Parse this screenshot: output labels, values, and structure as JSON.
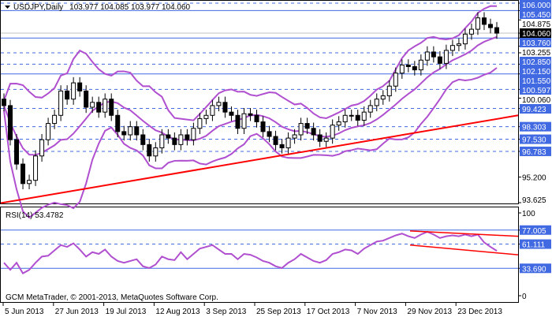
{
  "header": {
    "symbol": "USDJPY,Daily",
    "ohlc": "103.977 104.085 103.977 104.060"
  },
  "rsi_panel": {
    "label": "RSI(14) 53.4782"
  },
  "footer": {
    "copyright": "GCM MetaTrader, © 2001-2013, MetaQuotes Software Corp."
  },
  "colors": {
    "levels": "#4169e1",
    "bands": "#b050d0",
    "trendline": "#ff0000",
    "rsi": "#b050d0",
    "candles": "#000000"
  },
  "chart_data": [
    {
      "type": "candlestick",
      "title": "USDJPY,Daily",
      "ylim": [
        93.625,
        106.0
      ],
      "x_ticks": [
        "5 Jun 2013",
        "27 Jun 2013",
        "19 Jul 2013",
        "12 Aug 2013",
        "3 Sep 2013",
        "25 Sep 2013",
        "17 Oct 2013",
        "7 Nov 2013",
        "29 Nov 2013",
        "23 Dec 2013"
      ],
      "y_ticks": [
        "104.875",
        "103.255",
        "100.060",
        "95.200",
        "93.625"
      ],
      "current_price": "104.060",
      "solid_levels": [
        "105.450",
        "103.760",
        "101.550"
      ],
      "dashed_levels": [
        "106.000",
        "102.850",
        "102.150",
        "100.597",
        "99.423",
        "98.303",
        "97.530",
        "96.783"
      ],
      "closes": [
        99.6,
        97.5,
        96.0,
        94.8,
        95.0,
        96.5,
        97.5,
        98.5,
        99.0,
        100.5,
        100.0,
        101.0,
        100.5,
        99.5,
        99.8,
        99.2,
        100.0,
        99.0,
        98.0,
        97.8,
        98.3,
        97.8,
        97.2,
        96.5,
        97.0,
        97.8,
        97.6,
        97.2,
        97.8,
        97.5,
        98.2,
        98.8,
        99.0,
        99.6,
        99.8,
        99.2,
        99.0,
        98.2,
        99.1,
        99.0,
        98.6,
        98.0,
        97.7,
        97.2,
        97.0,
        97.6,
        97.8,
        98.5,
        98.2,
        97.8,
        97.4,
        97.6,
        98.4,
        98.6,
        99.0,
        99.0,
        98.7,
        99.2,
        99.6,
        100.0,
        100.2,
        100.8,
        101.6,
        102.1,
        102.0,
        101.8,
        102.4,
        102.9,
        102.6,
        102.2,
        103.0,
        103.3,
        103.4,
        104.0,
        104.3,
        105.0,
        104.6,
        104.4,
        104.06
      ],
      "bollinger": {
        "period": 10,
        "deviations": 2
      },
      "trendline": {
        "from": 93.6,
        "to": 99.0
      }
    },
    {
      "type": "line",
      "title": "RSI(14) 53.4782",
      "ylim": [
        0,
        100
      ],
      "y_ticks": [
        "100",
        "0"
      ],
      "levels": [
        "77.005",
        "61.111",
        "33.690"
      ],
      "values": [
        40,
        32,
        40,
        28,
        32,
        40,
        47,
        48,
        54,
        60,
        58,
        62,
        55,
        47,
        52,
        50,
        55,
        47,
        42,
        40,
        42,
        44,
        36,
        34,
        38,
        47,
        44,
        43,
        52,
        44,
        50,
        56,
        58,
        60,
        55,
        50,
        50,
        44,
        50,
        49,
        46,
        42,
        40,
        36,
        34,
        40,
        44,
        50,
        46,
        42,
        40,
        43,
        50,
        52,
        55,
        54,
        50,
        56,
        60,
        64,
        65,
        68,
        71,
        73,
        70,
        68,
        72,
        75,
        72,
        68,
        70,
        71,
        70,
        72,
        70,
        72,
        63,
        58,
        53.48
      ],
      "channel": {
        "upper": [
          76,
          70
        ],
        "lower": [
          60,
          49
        ]
      }
    }
  ]
}
